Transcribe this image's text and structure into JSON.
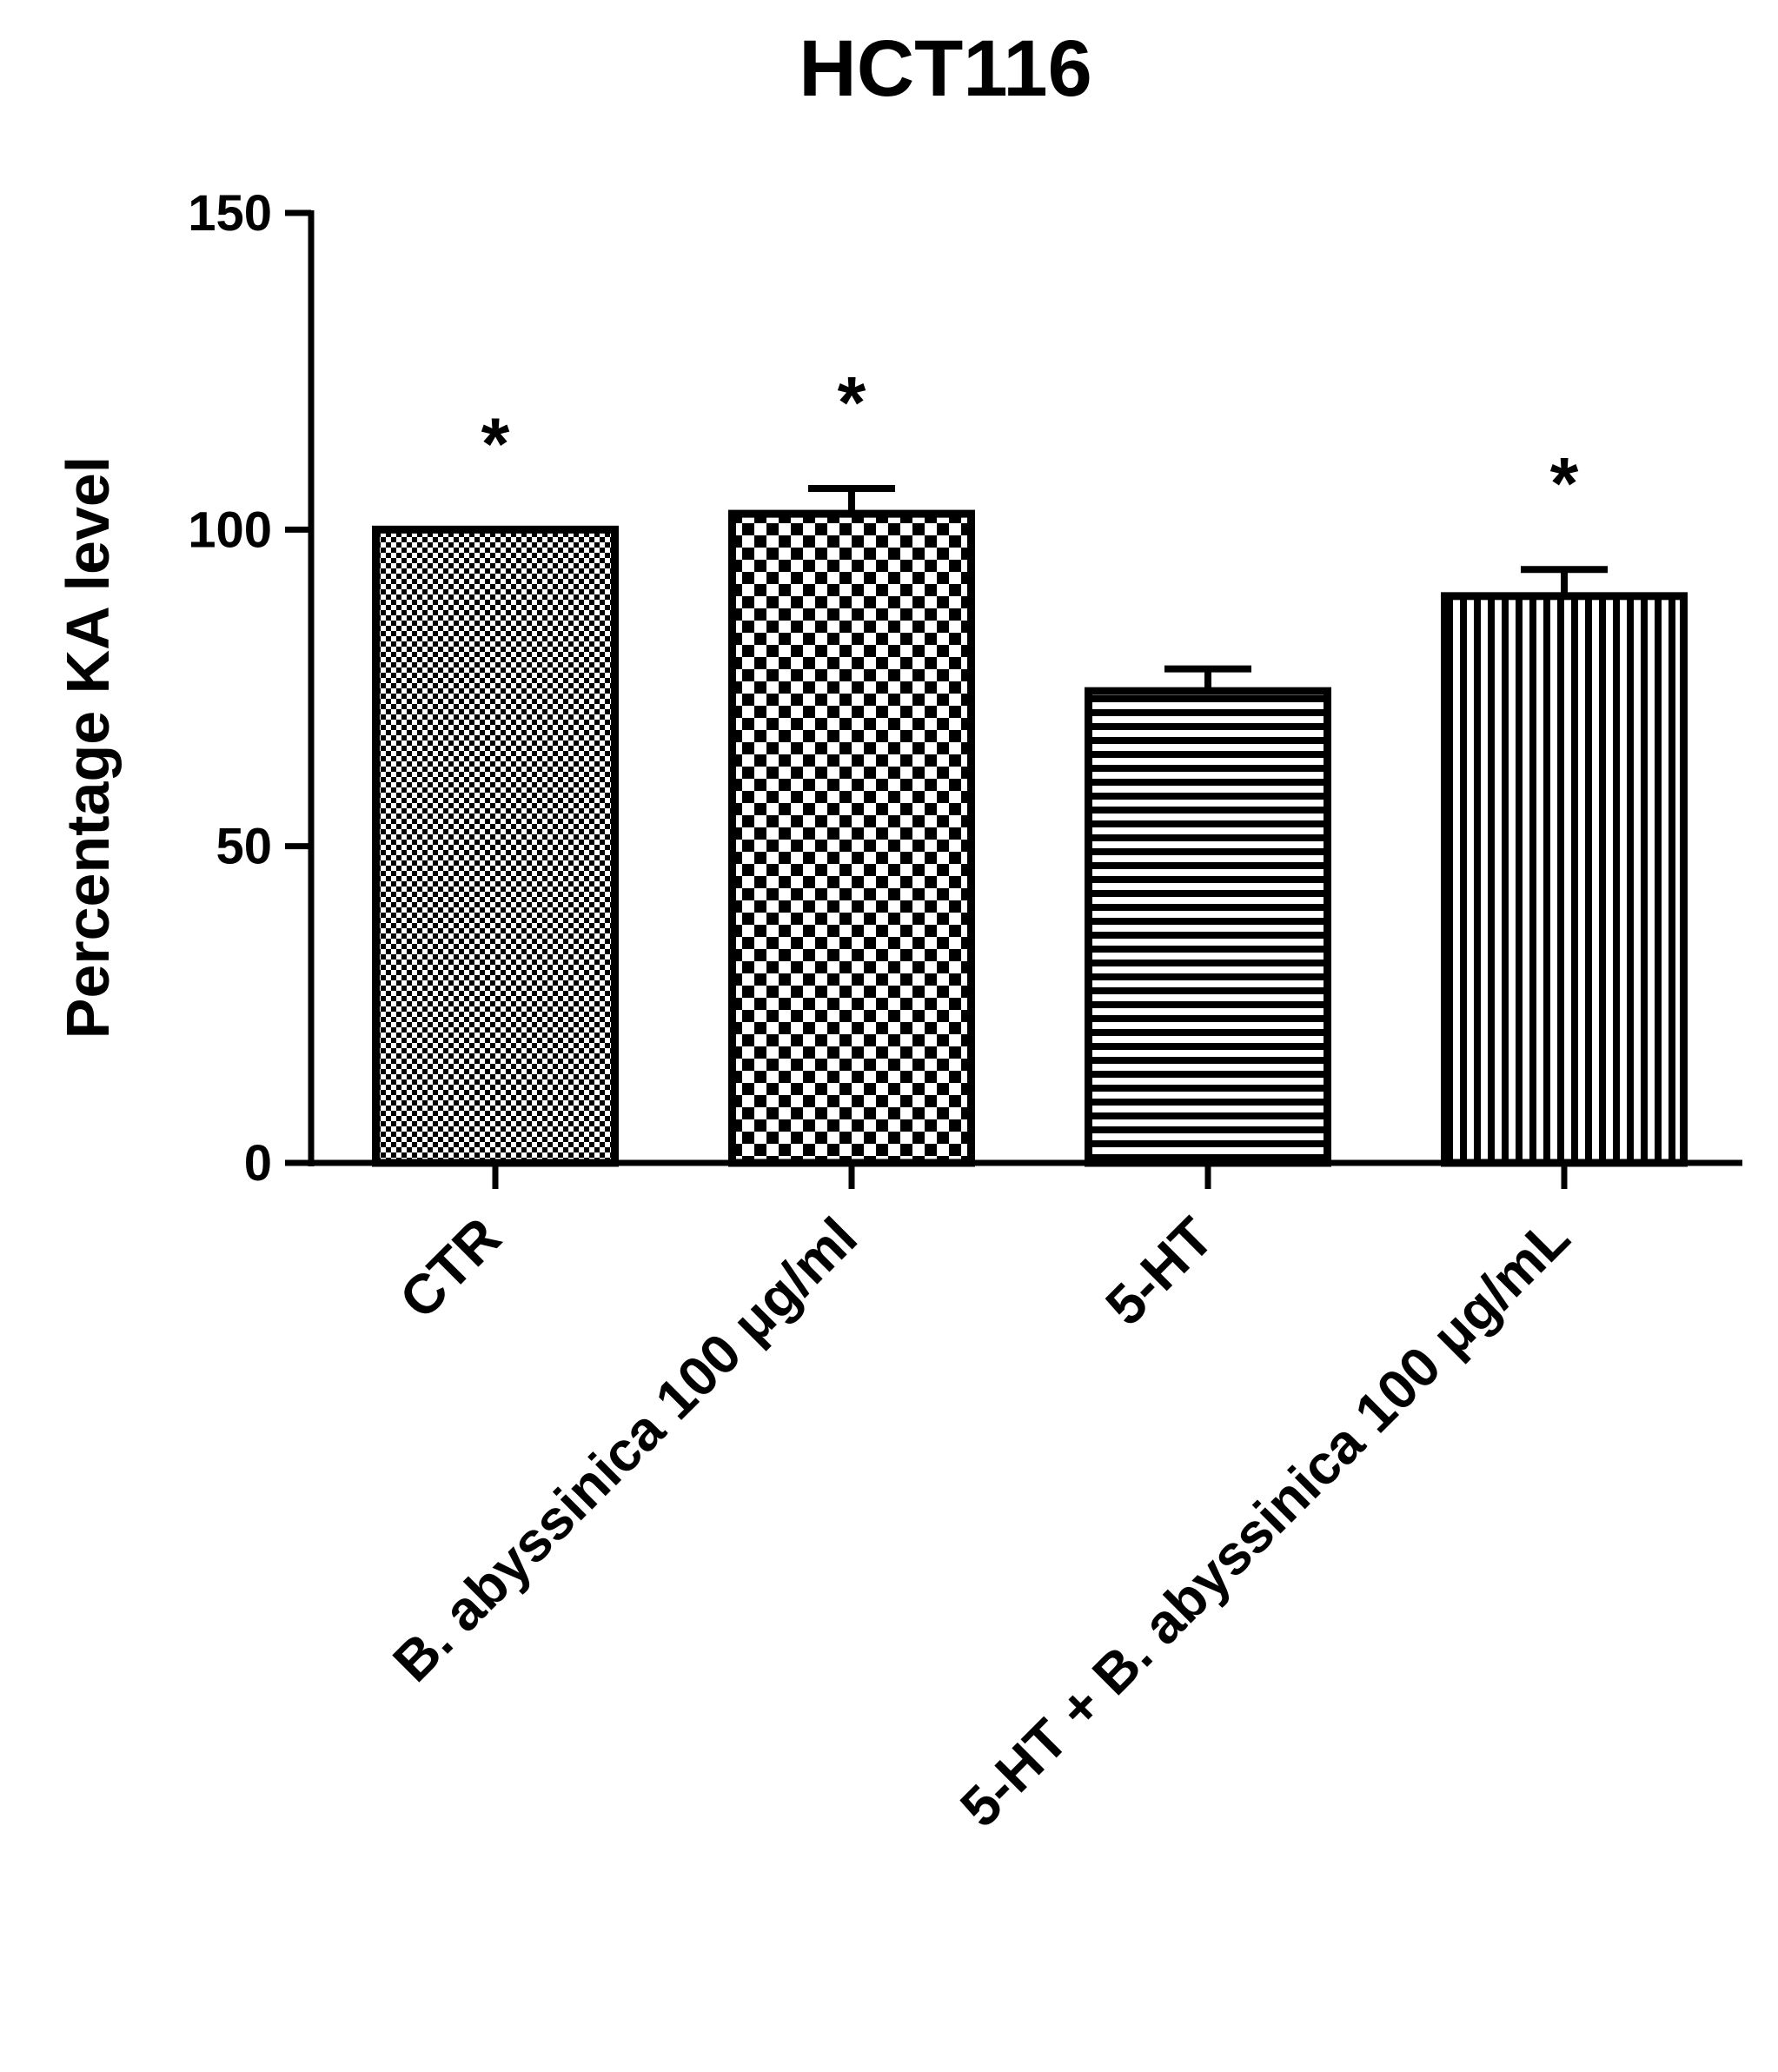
{
  "chart_data": {
    "type": "bar",
    "title": "HCT116",
    "ylabel": "Percentage KA level",
    "xlabel": "",
    "ylim": [
      0,
      150
    ],
    "yticks": [
      0,
      50,
      100,
      150
    ],
    "ytick_labels": [
      "0",
      "50",
      "100",
      "150"
    ],
    "categories": [
      "CTR",
      "B. abyssinica 100 μg/ml",
      "5-HT",
      "5-HT + B. abyssinica 100 μg/mL"
    ],
    "values": [
      100,
      102.5,
      74.5,
      89.5
    ],
    "errors": [
      0,
      4,
      3.5,
      4.2
    ],
    "significance": [
      "*",
      "*",
      "",
      "*"
    ],
    "fill_patterns": [
      "fine-checker",
      "checker",
      "horizontal-lines",
      "vertical-lines"
    ],
    "grid": false,
    "legend": "none",
    "colors": {
      "bar_stroke": "#000000",
      "fill": "#000000",
      "background": "#ffffff"
    }
  }
}
